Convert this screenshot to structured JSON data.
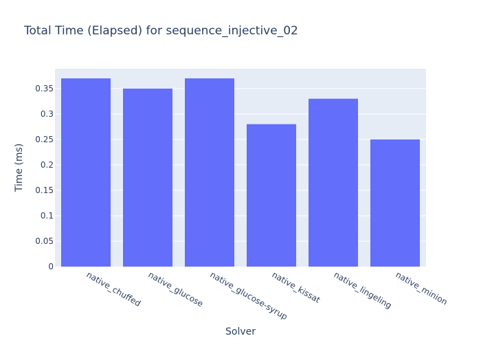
{
  "chart_data": {
    "type": "bar",
    "title": "Total Time (Elapsed) for sequence_injective_02",
    "xlabel": "Solver",
    "ylabel": "Time (ms)",
    "categories": [
      "native_chuffed",
      "native_glucose",
      "native_glucose-syrup",
      "native_kissat",
      "native_lingeling",
      "native_minion"
    ],
    "values": [
      0.37,
      0.35,
      0.37,
      0.28,
      0.33,
      0.25
    ],
    "ylim": [
      0,
      0.389
    ],
    "yticks": [
      0,
      0.05,
      0.1,
      0.15,
      0.2,
      0.25,
      0.3,
      0.35
    ],
    "ytick_labels": [
      "0",
      "0.05",
      "0.1",
      "0.15",
      "0.2",
      "0.25",
      "0.3",
      "0.35"
    ],
    "grid": true,
    "colors": {
      "bar": "#636efa",
      "plot_bg": "#e5ecf6",
      "grid": "#ffffff",
      "text": "#2a3f5f"
    }
  }
}
